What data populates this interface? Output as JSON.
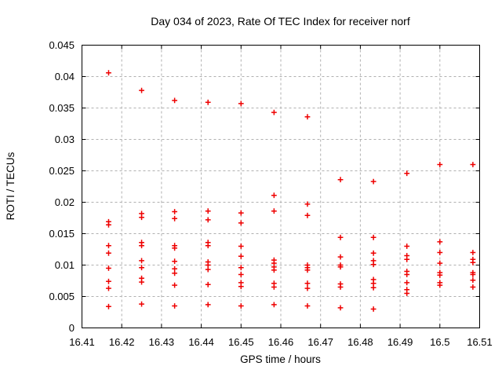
{
  "chart_data": {
    "type": "scatter",
    "title": "Day 034 of 2023, Rate Of TEC Index for receiver norf",
    "xlabel": "GPS time / hours",
    "ylabel": "ROTI / TECUs",
    "xlim": [
      16.41,
      16.51
    ],
    "ylim": [
      0,
      0.045
    ],
    "xticks": [
      16.41,
      16.42,
      16.43,
      16.44,
      16.45,
      16.46,
      16.47,
      16.48,
      16.49,
      16.5,
      16.51
    ],
    "xtick_labels": [
      "16.41",
      "16.42",
      "16.43",
      "16.44",
      "16.45",
      "16.46",
      "16.47",
      "16.48",
      "16.49",
      "16.5",
      "16.51"
    ],
    "yticks": [
      0,
      0.005,
      0.01,
      0.015,
      0.02,
      0.025,
      0.03,
      0.035,
      0.04,
      0.045
    ],
    "ytick_labels": [
      "0",
      "0.005",
      "0.01",
      "0.015",
      "0.02",
      "0.025",
      "0.03",
      "0.035",
      "0.04",
      "0.045"
    ],
    "grid": true,
    "legend": "none",
    "marker": "plus",
    "marker_color": "#ee0000",
    "grid_color": "#b0b0b0",
    "axis_color": "#000000",
    "epochs": [
      {
        "t": 16.4167,
        "roti": [
          0.0406,
          0.0169,
          0.0164,
          0.0131,
          0.0119,
          0.0095,
          0.0074,
          0.0063,
          0.0034
        ]
      },
      {
        "t": 16.425,
        "roti": [
          0.0378,
          0.0182,
          0.0176,
          0.0136,
          0.0131,
          0.0107,
          0.0096,
          0.0079,
          0.0073,
          0.0038
        ]
      },
      {
        "t": 16.4333,
        "roti": [
          0.0362,
          0.0185,
          0.0174,
          0.0131,
          0.0127,
          0.0106,
          0.0094,
          0.0087,
          0.0068,
          0.0035
        ]
      },
      {
        "t": 16.4417,
        "roti": [
          0.0359,
          0.0186,
          0.0172,
          0.0136,
          0.0131,
          0.0105,
          0.01,
          0.0093,
          0.0069,
          0.0037
        ]
      },
      {
        "t": 16.45,
        "roti": [
          0.0357,
          0.0183,
          0.0167,
          0.013,
          0.0114,
          0.0096,
          0.0085,
          0.0072,
          0.0066,
          0.0035
        ]
      },
      {
        "t": 16.4583,
        "roti": [
          0.0343,
          0.0211,
          0.0186,
          0.0108,
          0.0103,
          0.0097,
          0.0092,
          0.0071,
          0.0065,
          0.0037
        ]
      },
      {
        "t": 16.4667,
        "roti": [
          0.0336,
          0.0197,
          0.0179,
          0.01,
          0.0096,
          0.0092,
          0.0071,
          0.0063,
          0.0035
        ]
      },
      {
        "t": 16.475,
        "roti": [
          0.0236,
          0.0144,
          0.0113,
          0.01,
          0.0097,
          0.007,
          0.0065,
          0.0032
        ]
      },
      {
        "t": 16.4833,
        "roti": [
          0.0233,
          0.0144,
          0.0119,
          0.0107,
          0.0101,
          0.0077,
          0.0071,
          0.0064,
          0.003
        ]
      },
      {
        "t": 16.4917,
        "roti": [
          0.0246,
          0.013,
          0.0115,
          0.0109,
          0.009,
          0.0085,
          0.0072,
          0.0061,
          0.0055
        ]
      },
      {
        "t": 16.5,
        "roti": [
          0.026,
          0.0137,
          0.012,
          0.0103,
          0.0088,
          0.0084,
          0.0072,
          0.0068
        ]
      },
      {
        "t": 16.5083,
        "roti": [
          0.026,
          0.012,
          0.0109,
          0.0104,
          0.0088,
          0.0085,
          0.0076,
          0.0065
        ]
      }
    ]
  }
}
